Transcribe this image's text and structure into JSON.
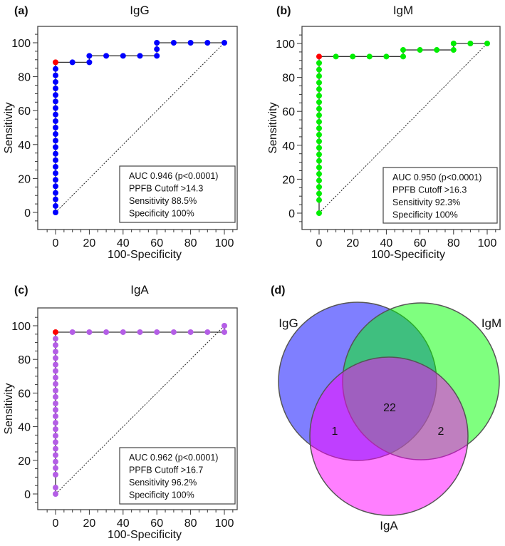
{
  "chart_data": [
    {
      "type": "line",
      "panel_label": "(a)",
      "title": "IgG",
      "xlabel": "100-Specificity",
      "ylabel": "Sensitivity",
      "xlim": [
        -5,
        105
      ],
      "ylim": [
        -8,
        108
      ],
      "xticks": [
        0,
        20,
        40,
        60,
        80,
        100
      ],
      "yticks": [
        0,
        20,
        40,
        60,
        80,
        100
      ],
      "xtick_labels": [
        "0",
        "20",
        "40",
        "60",
        "80",
        "100"
      ],
      "ytick_labels": [
        "0",
        "20",
        "40",
        "60",
        "80",
        "100"
      ],
      "point_color": "#0000ff",
      "cutoff_color": "#ff0000",
      "points": [
        [
          0,
          0
        ],
        [
          0,
          3.8
        ],
        [
          0,
          7.7
        ],
        [
          0,
          11.5
        ],
        [
          0,
          15.4
        ],
        [
          0,
          19.2
        ],
        [
          0,
          23.1
        ],
        [
          0,
          26.9
        ],
        [
          0,
          30.8
        ],
        [
          0,
          34.6
        ],
        [
          0,
          38.5
        ],
        [
          0,
          42.3
        ],
        [
          0,
          46.2
        ],
        [
          0,
          50
        ],
        [
          0,
          53.8
        ],
        [
          0,
          57.7
        ],
        [
          0,
          61.5
        ],
        [
          0,
          65.4
        ],
        [
          0,
          69.2
        ],
        [
          0,
          73.1
        ],
        [
          0,
          76.9
        ],
        [
          0,
          80.8
        ],
        [
          0,
          84.6
        ],
        [
          0,
          88.5
        ],
        [
          10,
          88.5
        ],
        [
          20,
          88.5
        ],
        [
          20,
          92.3
        ],
        [
          30,
          92.3
        ],
        [
          40,
          92.3
        ],
        [
          50,
          92.3
        ],
        [
          60,
          92.3
        ],
        [
          60,
          96.2
        ],
        [
          60,
          100
        ],
        [
          70,
          100
        ],
        [
          80,
          100
        ],
        [
          90,
          100
        ],
        [
          100,
          100
        ]
      ],
      "cutoff_point": [
        0,
        88.5
      ],
      "reference_line": [
        [
          0,
          0
        ],
        [
          100,
          100
        ]
      ],
      "legend": [
        "AUC 0.946 (p<0.0001)",
        "PPFB Cutoff >14.3",
        "Sensitivity 88.5%",
        "Specificity 100%"
      ],
      "legend_position": "bottom-right"
    },
    {
      "type": "line",
      "panel_label": "(b)",
      "title": "IgM",
      "xlabel": "100-Specificity",
      "ylabel": "Sensitivity",
      "xlim": [
        -5,
        105
      ],
      "ylim": [
        -8,
        108
      ],
      "xticks": [
        0,
        20,
        40,
        60,
        80,
        100
      ],
      "yticks": [
        0,
        20,
        40,
        60,
        80,
        100
      ],
      "xtick_labels": [
        "0",
        "20",
        "40",
        "60",
        "80",
        "100"
      ],
      "ytick_labels": [
        "0",
        "20",
        "40",
        "60",
        "80",
        "100"
      ],
      "point_color": "#00ee00",
      "cutoff_color": "#ff0000",
      "points": [
        [
          0,
          0
        ],
        [
          0,
          7.7
        ],
        [
          0,
          11.5
        ],
        [
          0,
          15.4
        ],
        [
          0,
          19.2
        ],
        [
          0,
          23.1
        ],
        [
          0,
          26.9
        ],
        [
          0,
          30.8
        ],
        [
          0,
          34.6
        ],
        [
          0,
          38.5
        ],
        [
          0,
          42.3
        ],
        [
          0,
          46.2
        ],
        [
          0,
          50
        ],
        [
          0,
          53.8
        ],
        [
          0,
          57.7
        ],
        [
          0,
          61.5
        ],
        [
          0,
          65.4
        ],
        [
          0,
          69.2
        ],
        [
          0,
          73.1
        ],
        [
          0,
          76.9
        ],
        [
          0,
          80.8
        ],
        [
          0,
          84.6
        ],
        [
          0,
          88.5
        ],
        [
          0,
          92.3
        ],
        [
          10,
          92.3
        ],
        [
          20,
          92.3
        ],
        [
          30,
          92.3
        ],
        [
          40,
          92.3
        ],
        [
          50,
          92.3
        ],
        [
          50,
          96.2
        ],
        [
          60,
          96.2
        ],
        [
          70,
          96.2
        ],
        [
          80,
          96.2
        ],
        [
          80,
          100
        ],
        [
          90,
          100
        ],
        [
          100,
          100
        ]
      ],
      "cutoff_point": [
        0,
        92.3
      ],
      "reference_line": [
        [
          0,
          0
        ],
        [
          100,
          100
        ]
      ],
      "legend": [
        "AUC 0.950 (p<0.0001)",
        "PPFB Cutoff >16.3",
        "Sensitivity 92.3%",
        "Specificity 100%"
      ],
      "legend_position": "bottom-right"
    },
    {
      "type": "line",
      "panel_label": "(c)",
      "title": "IgA",
      "xlabel": "100-Specificity",
      "ylabel": "Sensitivity",
      "xlim": [
        -5,
        105
      ],
      "ylim": [
        -8,
        108
      ],
      "xticks": [
        0,
        20,
        40,
        60,
        80,
        100
      ],
      "yticks": [
        0,
        20,
        40,
        60,
        80,
        100
      ],
      "xtick_labels": [
        "0",
        "20",
        "40",
        "60",
        "80",
        "100"
      ],
      "ytick_labels": [
        "0",
        "20",
        "40",
        "60",
        "80",
        "100"
      ],
      "point_color": "#b45ee6",
      "cutoff_color": "#ff0000",
      "points": [
        [
          0,
          0
        ],
        [
          0,
          3.8
        ],
        [
          0,
          11.5
        ],
        [
          0,
          15.4
        ],
        [
          0,
          19.2
        ],
        [
          0,
          23.1
        ],
        [
          0,
          26.9
        ],
        [
          0,
          30.8
        ],
        [
          0,
          34.6
        ],
        [
          0,
          38.5
        ],
        [
          0,
          42.3
        ],
        [
          0,
          46.2
        ],
        [
          0,
          50
        ],
        [
          0,
          53.8
        ],
        [
          0,
          57.7
        ],
        [
          0,
          61.5
        ],
        [
          0,
          65.4
        ],
        [
          0,
          69.2
        ],
        [
          0,
          73.1
        ],
        [
          0,
          76.9
        ],
        [
          0,
          80.8
        ],
        [
          0,
          84.6
        ],
        [
          0,
          88.5
        ],
        [
          0,
          92.3
        ],
        [
          0,
          96.2
        ],
        [
          10,
          96.2
        ],
        [
          20,
          96.2
        ],
        [
          30,
          96.2
        ],
        [
          40,
          96.2
        ],
        [
          50,
          96.2
        ],
        [
          60,
          96.2
        ],
        [
          70,
          96.2
        ],
        [
          80,
          96.2
        ],
        [
          90,
          96.2
        ],
        [
          100,
          96.2
        ],
        [
          100,
          100
        ]
      ],
      "cutoff_point": [
        0,
        96.2
      ],
      "reference_line": [
        [
          0,
          0
        ],
        [
          100,
          100
        ]
      ],
      "legend": [
        "AUC 0.962 (p<0.0001)",
        "PPFB Cutoff >16.7",
        "Sensitivity 96.2%",
        "Specificity 100%"
      ],
      "legend_position": "bottom-right"
    },
    {
      "type": "venn",
      "panel_label": "(d)",
      "sets": [
        {
          "name": "IgG",
          "color": "#0000ff"
        },
        {
          "name": "IgM",
          "color": "#00ff00"
        },
        {
          "name": "IgA",
          "color": "#ff00ff"
        }
      ],
      "regions": [
        {
          "sets": [
            "IgG",
            "IgM",
            "IgA"
          ],
          "value": "22"
        },
        {
          "sets": [
            "IgG",
            "IgA"
          ],
          "value": "1"
        },
        {
          "sets": [
            "IgM",
            "IgA"
          ],
          "value": "2"
        }
      ]
    }
  ]
}
